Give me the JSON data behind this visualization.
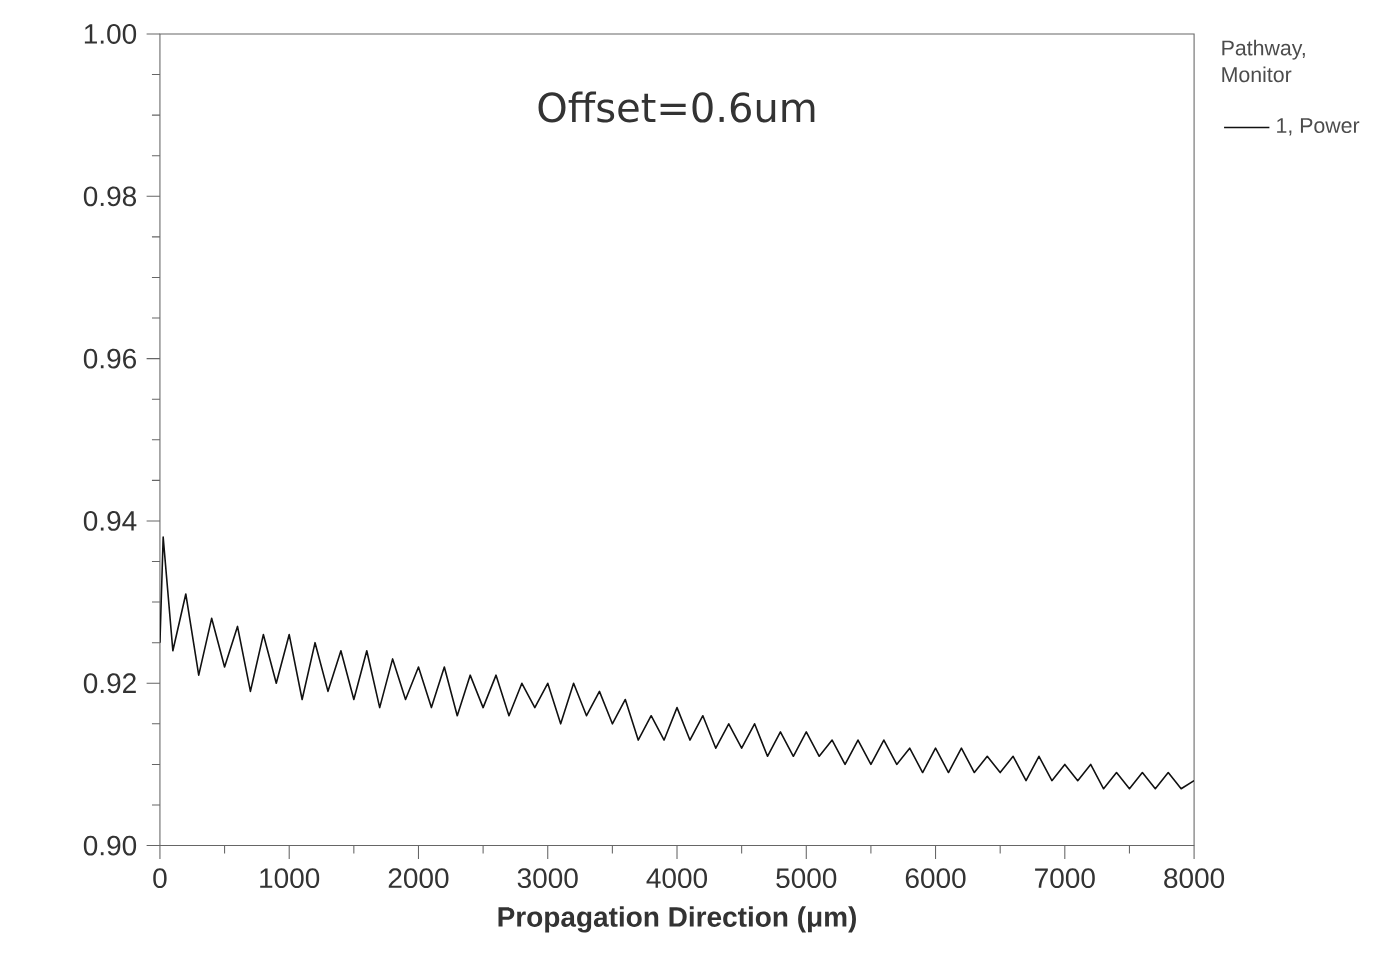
{
  "chart_data": {
    "type": "line",
    "xlabel": "Propagation Direction (μm)",
    "legend_title": "Pathway, Monitor",
    "legend": "top right",
    "annotations": [
      "Offset=0.6um"
    ],
    "xlim": [
      0,
      8000
    ],
    "ylim": [
      0.9,
      1.0
    ],
    "xticks": [
      0,
      1000,
      2000,
      3000,
      4000,
      5000,
      6000,
      7000,
      8000
    ],
    "yticks": [
      {
        "value": 0.9,
        "label": "0.90"
      },
      0.92,
      0.94,
      0.96,
      0.98,
      {
        "value": 1.0,
        "label": "1.00"
      }
    ],
    "grid": false,
    "marker": "none",
    "line_style": "solid",
    "series": [
      {
        "name": "1, Power",
        "color": "#111111",
        "x": [
          0,
          25,
          100,
          200,
          300,
          400,
          500,
          600,
          700,
          800,
          900,
          1000,
          1100,
          1200,
          1300,
          1400,
          1500,
          1600,
          1700,
          1800,
          1900,
          2000,
          2100,
          2200,
          2300,
          2400,
          2500,
          2600,
          2700,
          2800,
          2900,
          3000,
          3100,
          3200,
          3300,
          3400,
          3500,
          3600,
          3700,
          3800,
          3900,
          4000,
          4100,
          4200,
          4300,
          4400,
          4500,
          4600,
          4700,
          4800,
          4900,
          5000,
          5100,
          5200,
          5300,
          5400,
          5500,
          5600,
          5700,
          5800,
          5900,
          6000,
          6100,
          6200,
          6300,
          6400,
          6500,
          6600,
          6700,
          6800,
          6900,
          7000,
          7100,
          7200,
          7300,
          7400,
          7500,
          7600,
          7700,
          7800,
          7900,
          8000
        ],
        "values": [
          0.925,
          0.938,
          0.924,
          0.931,
          0.921,
          0.928,
          0.922,
          0.927,
          0.919,
          0.926,
          0.92,
          0.926,
          0.918,
          0.925,
          0.919,
          0.924,
          0.918,
          0.924,
          0.917,
          0.923,
          0.918,
          0.922,
          0.917,
          0.922,
          0.916,
          0.921,
          0.917,
          0.921,
          0.916,
          0.92,
          0.917,
          0.92,
          0.915,
          0.92,
          0.916,
          0.919,
          0.915,
          0.918,
          0.913,
          0.916,
          0.913,
          0.917,
          0.913,
          0.916,
          0.912,
          0.915,
          0.912,
          0.915,
          0.911,
          0.914,
          0.911,
          0.914,
          0.911,
          0.913,
          0.91,
          0.913,
          0.91,
          0.913,
          0.91,
          0.912,
          0.909,
          0.912,
          0.909,
          0.912,
          0.909,
          0.911,
          0.909,
          0.911,
          0.908,
          0.911,
          0.908,
          0.91,
          0.908,
          0.91,
          0.907,
          0.909,
          0.907,
          0.909,
          0.907,
          0.909,
          0.907,
          0.908
        ]
      }
    ]
  }
}
